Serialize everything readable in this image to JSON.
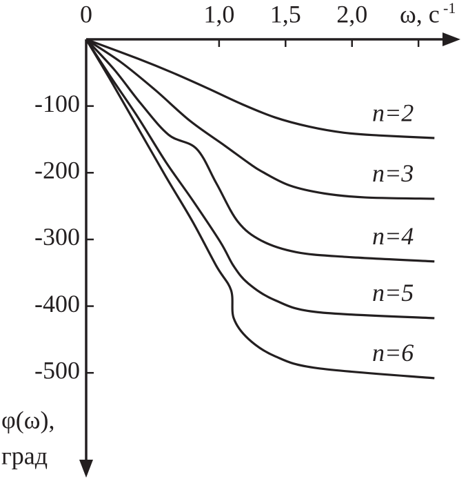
{
  "chart_data": {
    "type": "line",
    "x_label": "ω, с",
    "x_label_sup": "-1",
    "y_label": [
      "φ(ω),",
      "град"
    ],
    "xlim": [
      0,
      2.8
    ],
    "ylim": [
      -655,
      0
    ],
    "xticks": [
      0,
      {
        "value": 1.0,
        "label": "1,0"
      },
      {
        "value": 1.5,
        "label": "1,5"
      },
      {
        "value": 2.0,
        "label": "2,0"
      },
      {
        "value": 2.5,
        "label": null
      }
    ],
    "yticks": [
      -100,
      -200,
      -300,
      -400,
      -500
    ],
    "color": "#231f20",
    "series": [
      {
        "name": "n=2",
        "x": [
          0,
          0.39,
          0.65,
          0.91,
          1.17,
          1.42,
          1.68,
          1.94,
          2.2,
          2.62
        ],
        "values": [
          0,
          -29,
          -50,
          -73,
          -97,
          -117,
          -131,
          -140,
          -144,
          -148
        ]
      },
      {
        "name": "n=3",
        "x": [
          0,
          0.26,
          0.52,
          0.78,
          1.04,
          1.22,
          1.32,
          1.53,
          1.79,
          2.1,
          2.62
        ],
        "values": [
          0,
          -34,
          -76,
          -122,
          -159,
          -185,
          -198,
          -219,
          -231,
          -237,
          -239
        ]
      },
      {
        "name": "n=4",
        "x": [
          0,
          0.21,
          0.41,
          0.62,
          0.83,
          0.98,
          1.14,
          1.32,
          1.58,
          1.94,
          2.62
        ],
        "values": [
          0,
          -45,
          -96,
          -143,
          -164,
          -216,
          -273,
          -302,
          -319,
          -326,
          -333
        ]
      },
      {
        "name": "n=5",
        "x": [
          0,
          0.18,
          0.39,
          0.6,
          0.8,
          1.01,
          1.11,
          1.22,
          1.42,
          1.74,
          2.62
        ],
        "values": [
          0,
          -55,
          -117,
          -184,
          -241,
          -304,
          -340,
          -366,
          -391,
          -409,
          -418
        ]
      },
      {
        "name": "n=6",
        "x": [
          0,
          0.18,
          0.39,
          0.6,
          0.8,
          0.98,
          1.09,
          1.11,
          1.22,
          1.42,
          1.74,
          2.62
        ],
        "values": [
          0,
          -60,
          -133,
          -206,
          -273,
          -340,
          -376,
          -418,
          -449,
          -475,
          -493,
          -508
        ]
      }
    ]
  }
}
